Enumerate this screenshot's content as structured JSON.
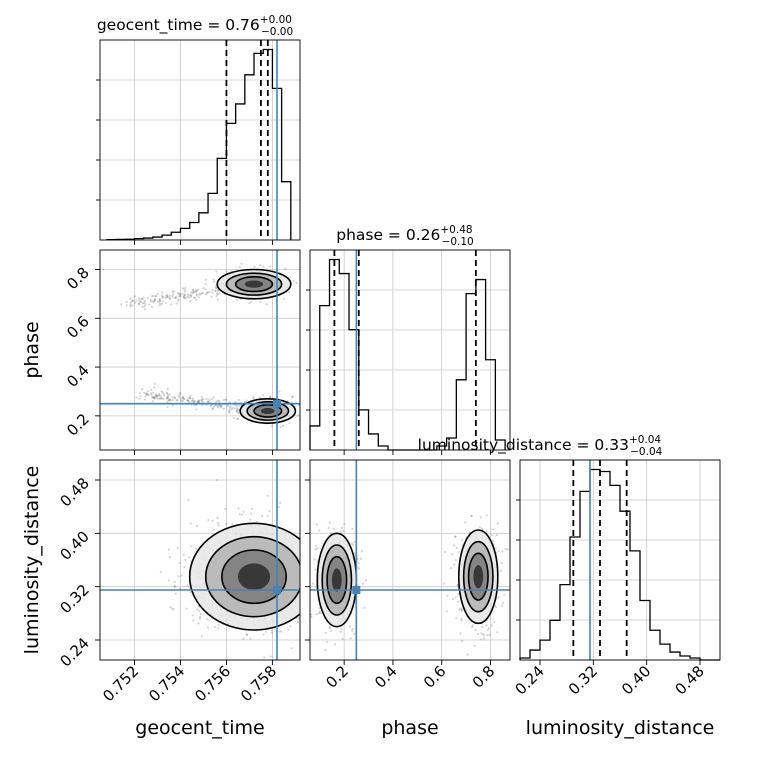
{
  "colors": {
    "truth": "#4682b4",
    "hist": "#000000",
    "background": "#ffffff"
  },
  "chart_data": {
    "type": "corner",
    "parameters": [
      "geocent_time",
      "phase",
      "luminosity_distance"
    ],
    "titles": [
      {
        "param": "geocent_time",
        "text": "geocent_time = 0.76",
        "sup": "+0.00",
        "sub": "−0.00"
      },
      {
        "param": "phase",
        "text": "phase = 0.26",
        "sup": "+0.48",
        "sub": "−0.10"
      },
      {
        "param": "luminosity_distance",
        "text": "luminosity_distance = 0.33",
        "sup": "+0.04",
        "sub": "−0.04"
      }
    ],
    "axes": {
      "geocent_time": {
        "range": [
          0.7505,
          0.7592
        ],
        "ticks": [
          0.752,
          0.754,
          0.756,
          0.758
        ],
        "tick_labels": [
          "0.752",
          "0.754",
          "0.756",
          "0.758"
        ]
      },
      "phase": {
        "range": [
          0.06,
          0.88
        ],
        "ticks": [
          0.2,
          0.4,
          0.6,
          0.8
        ],
        "tick_labels": [
          "0.2",
          "0.4",
          "0.6",
          "0.8"
        ]
      },
      "luminosity_distance": {
        "range": [
          0.21,
          0.51
        ],
        "ticks": [
          0.24,
          0.32,
          0.4,
          0.48
        ],
        "tick_labels": [
          "0.24",
          "0.32",
          "0.40",
          "0.48"
        ]
      }
    },
    "truths": {
      "geocent_time": 0.7582,
      "phase": 0.25,
      "luminosity_distance": 0.315
    },
    "quantiles": {
      "geocent_time": [
        0.756,
        0.7575,
        0.7578
      ],
      "phase": [
        0.16,
        0.26,
        0.74
      ],
      "luminosity_distance": [
        0.29,
        0.33,
        0.37
      ]
    },
    "histograms": {
      "geocent_time": {
        "edges": [
          0.7508,
          0.7512,
          0.7516,
          0.752,
          0.7524,
          0.7528,
          0.7532,
          0.7536,
          0.754,
          0.7544,
          0.7548,
          0.7552,
          0.7556,
          0.756,
          0.7564,
          0.7568,
          0.7572,
          0.7576,
          0.758,
          0.7584,
          0.7588
        ],
        "counts": [
          0.2,
          0.3,
          0.4,
          0.7,
          1.0,
          1.5,
          2.5,
          4.0,
          6.0,
          9.0,
          14.0,
          24.0,
          42.0,
          60.0,
          70.0,
          85.0,
          96.0,
          98.0,
          78.0,
          30.0
        ]
      },
      "phase": {
        "edges": [
          0.06,
          0.1,
          0.14,
          0.18,
          0.22,
          0.26,
          0.3,
          0.34,
          0.38,
          0.42,
          0.46,
          0.5,
          0.54,
          0.58,
          0.62,
          0.66,
          0.7,
          0.74,
          0.78,
          0.82,
          0.86
        ],
        "counts": [
          12,
          72,
          95,
          88,
          60,
          20,
          8,
          2,
          0,
          0,
          0,
          0,
          0,
          2,
          6,
          35,
          78,
          85,
          45,
          5
        ]
      },
      "luminosity_distance": {
        "edges": [
          0.21,
          0.225,
          0.24,
          0.255,
          0.27,
          0.285,
          0.3,
          0.315,
          0.33,
          0.345,
          0.36,
          0.375,
          0.39,
          0.405,
          0.42,
          0.435,
          0.45,
          0.465,
          0.48,
          0.495,
          0.51
        ],
        "counts": [
          1,
          5,
          10,
          20,
          38,
          62,
          85,
          96,
          95,
          88,
          75,
          55,
          30,
          15,
          8,
          4,
          2,
          1,
          0,
          0
        ]
      }
    },
    "samples_2d": [
      {
        "x": "geocent_time",
        "y": "phase",
        "clusters": [
          {
            "mx": 0.7572,
            "my": 0.74,
            "sx": 0.0008,
            "sy": 0.03,
            "n": 420,
            "tail": -0.0055,
            "tail_slope": 0.085
          },
          {
            "mx": 0.7578,
            "my": 0.22,
            "sx": 0.0006,
            "sy": 0.025,
            "n": 480,
            "tail": -0.0055,
            "tail_slope": 0.07
          }
        ]
      },
      {
        "x": "geocent_time",
        "y": "luminosity_distance",
        "clusters": [
          {
            "mx": 0.7572,
            "my": 0.335,
            "sx": 0.0014,
            "sy": 0.04,
            "n": 900,
            "tail": 0,
            "tail_slope": 0
          }
        ]
      },
      {
        "x": "phase",
        "y": "luminosity_distance",
        "clusters": [
          {
            "mx": 0.17,
            "my": 0.33,
            "sx": 0.04,
            "sy": 0.035,
            "n": 520,
            "tail": 0,
            "tail_slope": 0
          },
          {
            "mx": 0.75,
            "my": 0.335,
            "sx": 0.04,
            "sy": 0.035,
            "n": 520,
            "tail": 0,
            "tail_slope": 0
          }
        ]
      }
    ],
    "contour_levels": [
      "0.5 sigma",
      "1 sigma",
      "1.5 sigma",
      "2 sigma"
    ]
  }
}
